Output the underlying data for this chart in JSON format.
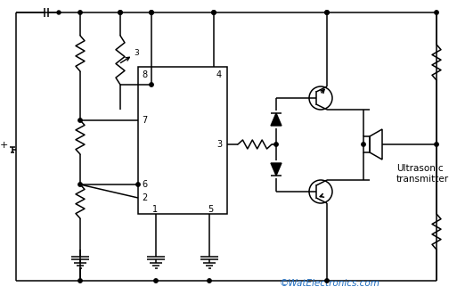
{
  "watermark": "©WatElectronics.com",
  "label_ultrasonic": "Ultrasonic\ntransmitter",
  "bg_color": "#ffffff",
  "line_color": "#000000",
  "watermark_color": "#1a6abf",
  "figsize": [
    5.13,
    3.31
  ],
  "dpi": 100
}
